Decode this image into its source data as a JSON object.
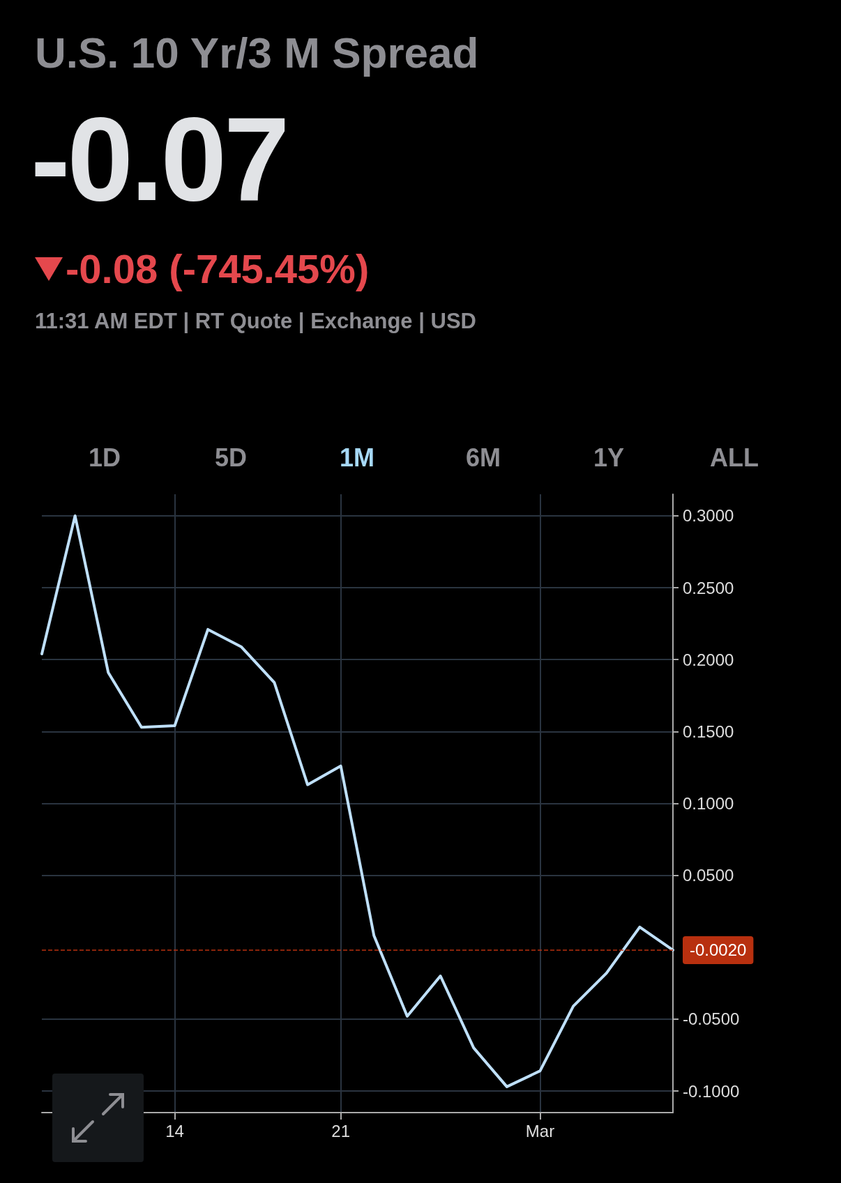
{
  "chart_data": {
    "type": "line",
    "title": "U.S. 10 Yr/3 M Spread",
    "subtitle": "-0.07",
    "annotations": [
      "-0.08 (-745.45%)",
      "11:31 AM EDT | RT Quote | Exchange | USD",
      "1D",
      "5D",
      "1M",
      "6M",
      "1Y",
      "ALL"
    ],
    "categories": [
      null,
      null,
      null,
      null,
      "14",
      null,
      null,
      null,
      null,
      "21",
      null,
      null,
      null,
      null,
      null,
      "Mar",
      null,
      null,
      null,
      null
    ],
    "series": [
      {
        "color": "#bfe0fb",
        "values": [
          0.204,
          0.3,
          0.191,
          0.153,
          0.154,
          0.221,
          0.209,
          0.184,
          0.113,
          0.126,
          0.008,
          -0.048,
          -0.02,
          -0.07,
          -0.097,
          -0.086,
          -0.041,
          -0.018,
          0.014,
          -0.002
        ]
      }
    ],
    "ylim": [
      -0.115,
      0.315
    ],
    "yticks": [
      {
        "value": -0.1,
        "label": "-0.1000"
      },
      {
        "value": -0.05,
        "label": "-0.0500"
      },
      {
        "value": 0.05,
        "label": "0.0500"
      },
      {
        "value": 0.1,
        "label": "0.1000"
      },
      {
        "value": 0.15,
        "label": "0.1500"
      },
      {
        "value": 0.2,
        "label": "0.2000"
      },
      {
        "value": 0.25,
        "label": "0.2500"
      },
      {
        "value": 0.3,
        "label": "0.3000"
      }
    ],
    "ref_lines": [
      {
        "axis": "y",
        "value": -0.002,
        "label": "-0.0020",
        "color": "#b8300f",
        "line_style": "dashed"
      }
    ],
    "grid": true,
    "marker": "none",
    "line_style": "solid"
  }
}
